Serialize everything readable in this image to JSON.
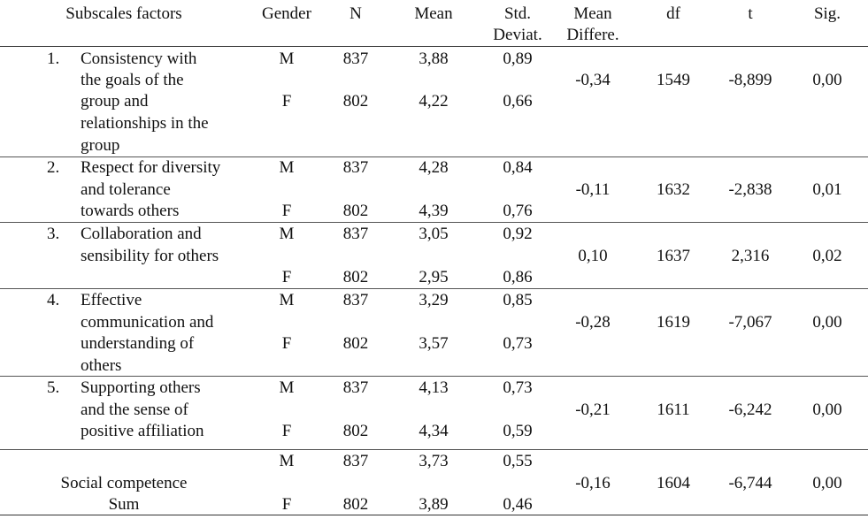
{
  "headers": {
    "subscales": "Subscales factors",
    "gender": "Gender",
    "n": "N",
    "mean": "Mean",
    "std_1": "Std.",
    "std_2": "Deviat.",
    "meandiff_1": "Mean",
    "meandiff_2": "Differe.",
    "df": "df",
    "t": "t",
    "sig": "Sig."
  },
  "rows": [
    {
      "num": "1.",
      "label": [
        "Consistency with",
        "the goals of the",
        "group and",
        "relationships in the",
        "group"
      ],
      "m": {
        "gender": "M",
        "n": "837",
        "mean": "3,88",
        "sd": "0,89"
      },
      "f": {
        "gender": "F",
        "n": "802",
        "mean": "4,22",
        "sd": "0,66"
      },
      "mean_diff": "-0,34",
      "df": "1549",
      "t": "-8,899",
      "sig": "0,00"
    },
    {
      "num": "2.",
      "label": [
        "Respect for diversity",
        "and tolerance",
        "towards others"
      ],
      "m": {
        "gender": "M",
        "n": "837",
        "mean": "4,28",
        "sd": "0,84"
      },
      "f": {
        "gender": "F",
        "n": "802",
        "mean": "4,39",
        "sd": "0,76"
      },
      "mean_diff": "-0,11",
      "df": "1632",
      "t": "-2,838",
      "sig": "0,01"
    },
    {
      "num": "3.",
      "label": [
        "Collaboration and",
        "sensibility for others"
      ],
      "m": {
        "gender": "M",
        "n": "837",
        "mean": "3,05",
        "sd": "0,92"
      },
      "f": {
        "gender": "F",
        "n": "802",
        "mean": "2,95",
        "sd": "0,86"
      },
      "mean_diff": "0,10",
      "df": "1637",
      "t": "2,316",
      "sig": "0,02"
    },
    {
      "num": "4.",
      "label": [
        "Effective",
        "communication and",
        "understanding of",
        "others"
      ],
      "m": {
        "gender": "M",
        "n": "837",
        "mean": "3,29",
        "sd": "0,85"
      },
      "f": {
        "gender": "F",
        "n": "802",
        "mean": "3,57",
        "sd": "0,73"
      },
      "mean_diff": "-0,28",
      "df": "1619",
      "t": "-7,067",
      "sig": "0,00"
    },
    {
      "num": "5.",
      "label": [
        "Supporting others",
        "and the sense of",
        "positive affiliation"
      ],
      "m": {
        "gender": "M",
        "n": "837",
        "mean": "4,13",
        "sd": "0,73"
      },
      "f": {
        "gender": "F",
        "n": "802",
        "mean": "4,34",
        "sd": "0,59"
      },
      "mean_diff": "-0,21",
      "df": "1611",
      "t": "-6,242",
      "sig": "0,00"
    }
  ],
  "sum_row": {
    "label": [
      "Social competence",
      "Sum"
    ],
    "m": {
      "gender": "M",
      "n": "837",
      "mean": "3,73",
      "sd": "0,55"
    },
    "f": {
      "gender": "F",
      "n": "802",
      "mean": "3,89",
      "sd": "0,46"
    },
    "mean_diff": "-0,16",
    "df": "1604",
    "t": "-6,744",
    "sig": "0,00"
  }
}
